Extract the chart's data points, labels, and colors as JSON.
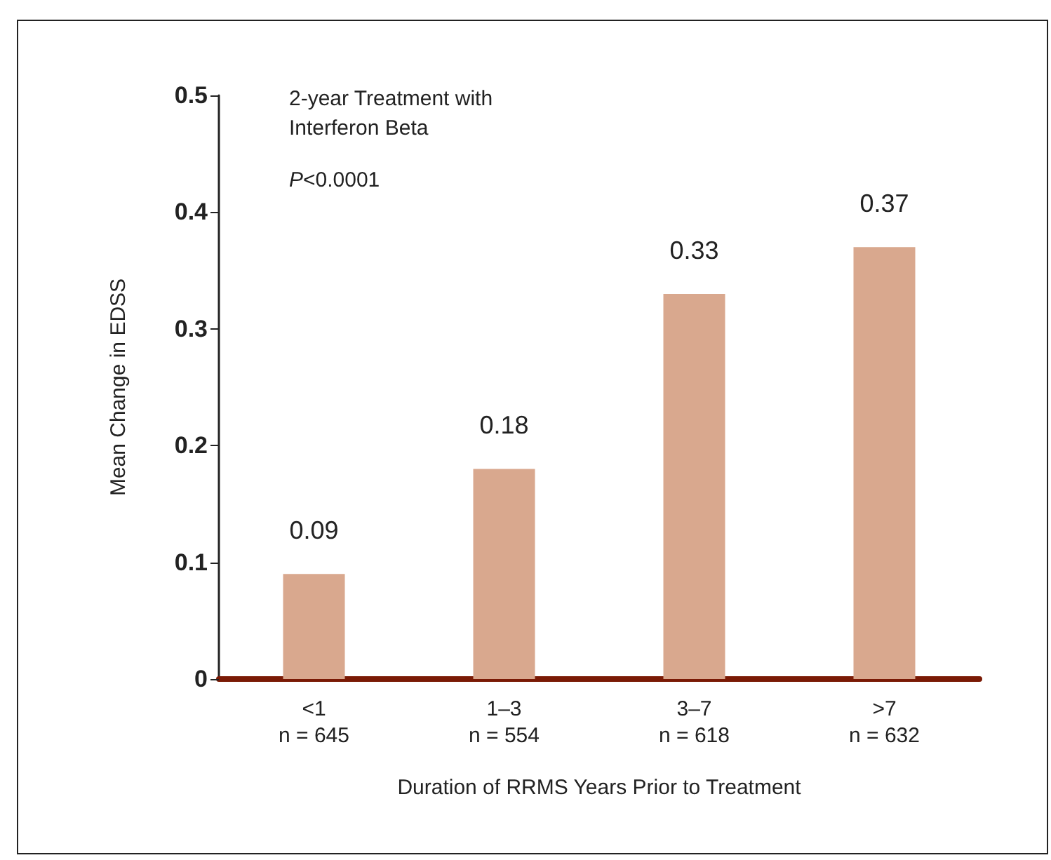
{
  "chart_data": {
    "type": "bar",
    "xlabel": "Duration of RRMS Years Prior to Treatment",
    "ylabel": "Mean Change in EDSS",
    "categories": [
      "<1\nn = 645",
      "1–3\nn = 554",
      "3–7\nn = 618",
      ">7\nn = 632"
    ],
    "values": [
      0.09,
      0.18,
      0.33,
      0.37
    ],
    "color": "#d9a88e",
    "ylim": [
      0,
      0.5
    ],
    "yticks": [
      0,
      0.1,
      0.2,
      0.3,
      0.4,
      0.5
    ],
    "grid": false,
    "data_labels": true,
    "annotations": [
      "2-year Treatment with\nInterferon Beta",
      "P<0.0001"
    ]
  }
}
